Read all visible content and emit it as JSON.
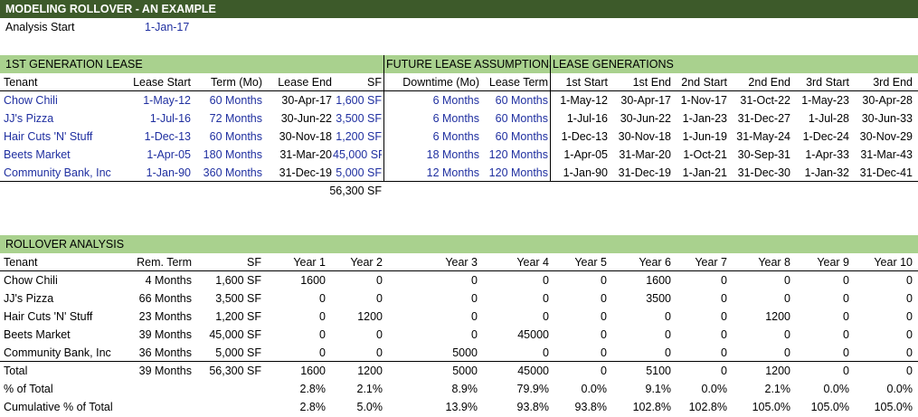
{
  "title": "MODELING ROLLOVER - AN EXAMPLE",
  "analysis_start": {
    "label": "Analysis Start",
    "value": "1-Jan-17"
  },
  "lease": {
    "section_first": "1ST GENERATION LEASE",
    "section_future": "FUTURE LEASE ASSUMPTIONS",
    "section_gen": "LEASE GENERATIONS",
    "headers": [
      "Tenant",
      "Lease Start",
      "Term (Mo)",
      "Lease End",
      "SF",
      "Downtime (Mo)",
      "Lease Term",
      "1st Start",
      "1st End",
      "2nd Start",
      "2nd End",
      "3rd Start",
      "3rd End"
    ],
    "rows": [
      [
        "Chow Chili",
        "1-May-12",
        "60 Months",
        "30-Apr-17",
        "1,600 SF",
        "6 Months",
        "60 Months",
        "1-May-12",
        "30-Apr-17",
        "1-Nov-17",
        "31-Oct-22",
        "1-May-23",
        "30-Apr-28"
      ],
      [
        "JJ's Pizza",
        "1-Jul-16",
        "72 Months",
        "30-Jun-22",
        "3,500 SF",
        "6 Months",
        "60 Months",
        "1-Jul-16",
        "30-Jun-22",
        "1-Jan-23",
        "31-Dec-27",
        "1-Jul-28",
        "30-Jun-33"
      ],
      [
        "Hair Cuts 'N' Stuff",
        "1-Dec-13",
        "60 Months",
        "30-Nov-18",
        "1,200 SF",
        "6 Months",
        "60 Months",
        "1-Dec-13",
        "30-Nov-18",
        "1-Jun-19",
        "31-May-24",
        "1-Dec-24",
        "30-Nov-29"
      ],
      [
        "Beets Market",
        "1-Apr-05",
        "180 Months",
        "31-Mar-20",
        "45,000 SF",
        "18 Months",
        "120 Months",
        "1-Apr-05",
        "31-Mar-20",
        "1-Oct-21",
        "30-Sep-31",
        "1-Apr-33",
        "31-Mar-43"
      ],
      [
        "Community Bank, Inc",
        "1-Jan-90",
        "360 Months",
        "31-Dec-19",
        "5,000 SF",
        "12 Months",
        "120 Months",
        "1-Jan-90",
        "31-Dec-19",
        "1-Jan-21",
        "31-Dec-30",
        "1-Jan-32",
        "31-Dec-41"
      ]
    ],
    "total_sf": "56,300 SF"
  },
  "rollover": {
    "section": "ROLLOVER ANALYSIS",
    "headers": [
      "Tenant",
      "Rem. Term",
      "SF",
      "Year 1",
      "Year 2",
      "Year 3",
      "Year 4",
      "Year 5",
      "Year 6",
      "Year 7",
      "Year 8",
      "Year 9",
      "Year 10"
    ],
    "rows": [
      [
        "Chow Chili",
        "4 Months",
        "1,600 SF",
        "1600",
        "0",
        "0",
        "0",
        "0",
        "1600",
        "0",
        "0",
        "0",
        "0"
      ],
      [
        "JJ's Pizza",
        "66 Months",
        "3,500 SF",
        "0",
        "0",
        "0",
        "0",
        "0",
        "3500",
        "0",
        "0",
        "0",
        "0"
      ],
      [
        "Hair Cuts 'N' Stuff",
        "23 Months",
        "1,200 SF",
        "0",
        "1200",
        "0",
        "0",
        "0",
        "0",
        "0",
        "1200",
        "0",
        "0"
      ],
      [
        "Beets Market",
        "39 Months",
        "45,000 SF",
        "0",
        "0",
        "0",
        "45000",
        "0",
        "0",
        "0",
        "0",
        "0",
        "0"
      ],
      [
        "Community Bank, Inc",
        "36 Months",
        "5,000 SF",
        "0",
        "0",
        "5000",
        "0",
        "0",
        "0",
        "0",
        "0",
        "0",
        "0"
      ]
    ],
    "total": [
      "Total",
      "39 Months",
      "56,300 SF",
      "1600",
      "1200",
      "5000",
      "45000",
      "0",
      "5100",
      "0",
      "1200",
      "0",
      "0"
    ],
    "pct": [
      "% of Total",
      "",
      "",
      "2.8%",
      "2.1%",
      "8.9%",
      "79.9%",
      "0.0%",
      "9.1%",
      "0.0%",
      "2.1%",
      "0.0%",
      "0.0%"
    ],
    "cum": [
      "Cumulative % of Total",
      "",
      "",
      "2.8%",
      "5.0%",
      "13.9%",
      "93.8%",
      "93.8%",
      "102.8%",
      "102.8%",
      "105.0%",
      "105.0%",
      "105.0%"
    ]
  }
}
